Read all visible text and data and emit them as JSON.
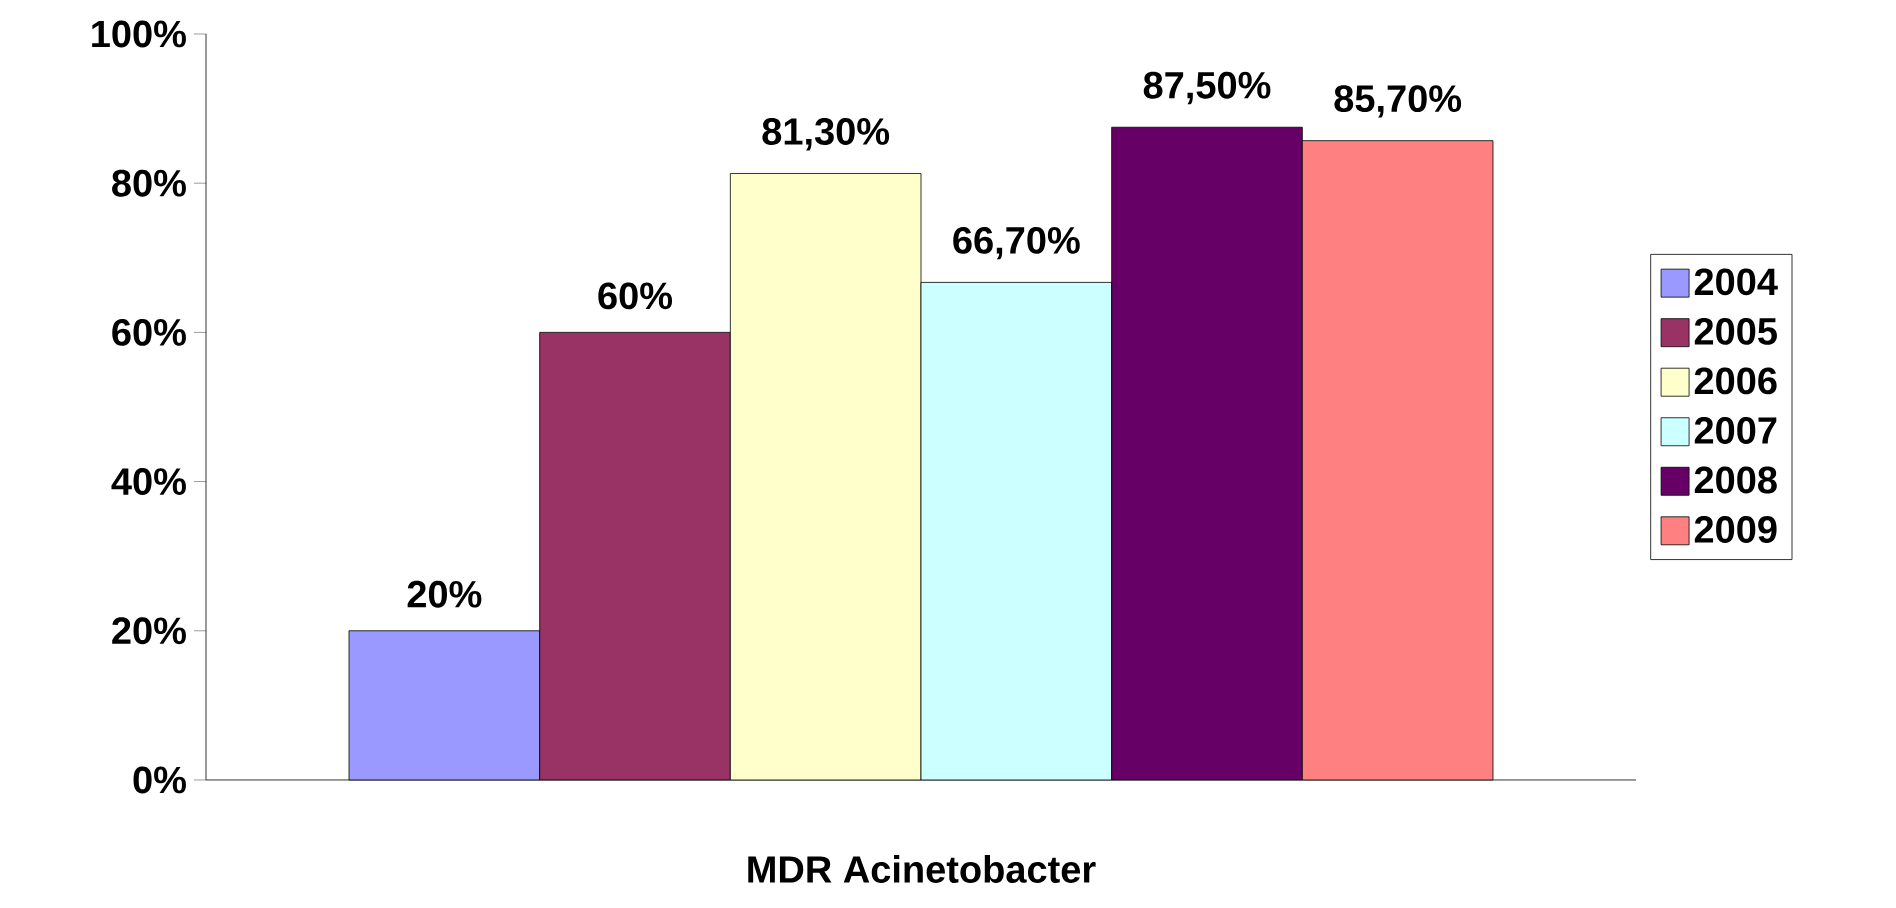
{
  "chart_data": {
    "type": "bar",
    "categories": [
      "MDR Acinetobacter"
    ],
    "series": [
      {
        "name": "2004",
        "color": "#9999ff",
        "values": [
          20
        ],
        "value_labels": [
          "20%"
        ]
      },
      {
        "name": "2005",
        "color": "#993366",
        "values": [
          60
        ],
        "value_labels": [
          "60%"
        ]
      },
      {
        "name": "2006",
        "color": "#ffffcc",
        "values": [
          81.3
        ],
        "value_labels": [
          "81,30%"
        ]
      },
      {
        "name": "2007",
        "color": "#ccffff",
        "values": [
          66.7
        ],
        "value_labels": [
          "66,70%"
        ]
      },
      {
        "name": "2008",
        "color": "#660066",
        "values": [
          87.5
        ],
        "value_labels": [
          "87,50%"
        ]
      },
      {
        "name": "2009",
        "color": "#ff8080",
        "values": [
          85.7
        ],
        "value_labels": [
          "85,70%"
        ]
      }
    ],
    "ylim": [
      0,
      100
    ],
    "yticks": [
      {
        "value": 0,
        "label": "0%"
      },
      {
        "value": 20,
        "label": "20%"
      },
      {
        "value": 40,
        "label": "40%"
      },
      {
        "value": 60,
        "label": "60%"
      },
      {
        "value": 80,
        "label": "80%"
      },
      {
        "value": 100,
        "label": "100%"
      }
    ],
    "grid": false,
    "legend": "right"
  }
}
